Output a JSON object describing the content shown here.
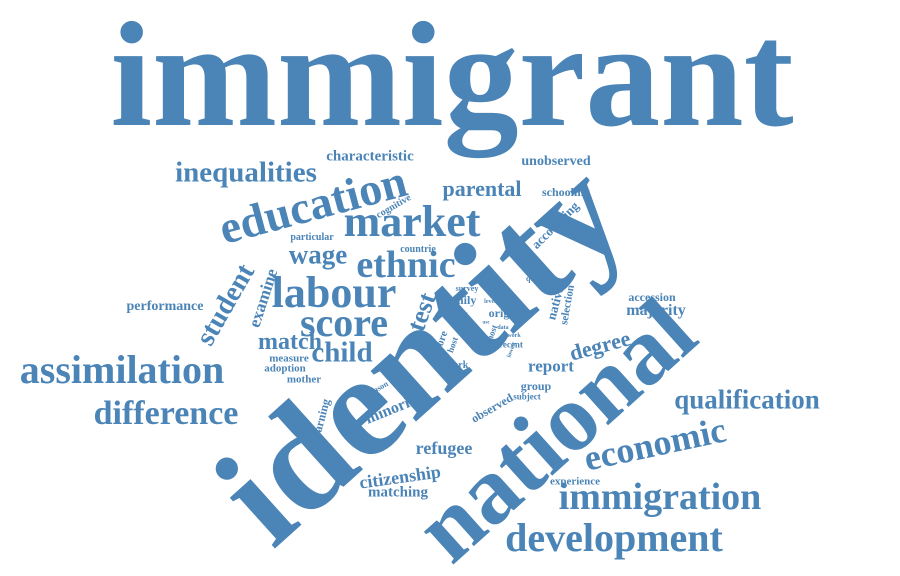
{
  "color": "#4b84b6",
  "words": [
    {
      "text": "immigrant"
    },
    {
      "text": "identity"
    },
    {
      "text": "national"
    },
    {
      "text": "education"
    },
    {
      "text": "market"
    },
    {
      "text": "labour"
    },
    {
      "text": "ethnic"
    },
    {
      "text": "score"
    },
    {
      "text": "assimilation"
    },
    {
      "text": "difference"
    },
    {
      "text": "immigration"
    },
    {
      "text": "development"
    },
    {
      "text": "economic"
    },
    {
      "text": "inequalities"
    },
    {
      "text": "qualification"
    },
    {
      "text": "child"
    },
    {
      "text": "student"
    },
    {
      "text": "wage"
    },
    {
      "text": "parental"
    },
    {
      "text": "match"
    },
    {
      "text": "test"
    },
    {
      "text": "degree"
    },
    {
      "text": "citizenship"
    },
    {
      "text": "refugee"
    },
    {
      "text": "majority"
    },
    {
      "text": "minority"
    },
    {
      "text": "report"
    },
    {
      "text": "examine"
    },
    {
      "text": "characteristic"
    },
    {
      "text": "performance"
    },
    {
      "text": "matching"
    },
    {
      "text": "unobserved"
    },
    {
      "text": "schooling"
    },
    {
      "text": "accounting"
    },
    {
      "text": "accession"
    },
    {
      "text": "native"
    },
    {
      "text": "selection"
    },
    {
      "text": "origin"
    },
    {
      "text": "family"
    },
    {
      "text": "group"
    },
    {
      "text": "experience"
    },
    {
      "text": "observed"
    },
    {
      "text": "earning"
    },
    {
      "text": "measure"
    },
    {
      "text": "adoption"
    },
    {
      "text": "mother"
    },
    {
      "text": "particular"
    },
    {
      "text": "cognitive"
    },
    {
      "text": "countrie"
    },
    {
      "text": "survey"
    },
    {
      "text": "quality"
    },
    {
      "text": "more"
    },
    {
      "text": "most"
    },
    {
      "text": "dark"
    },
    {
      "text": "host"
    },
    {
      "text": "recent"
    },
    {
      "text": "subject"
    },
    {
      "text": "reason"
    },
    {
      "text": "data"
    },
    {
      "text": "work"
    },
    {
      "text": "level"
    },
    {
      "text": "lowest"
    },
    {
      "text": "use"
    },
    {
      "text": "set"
    }
  ]
}
